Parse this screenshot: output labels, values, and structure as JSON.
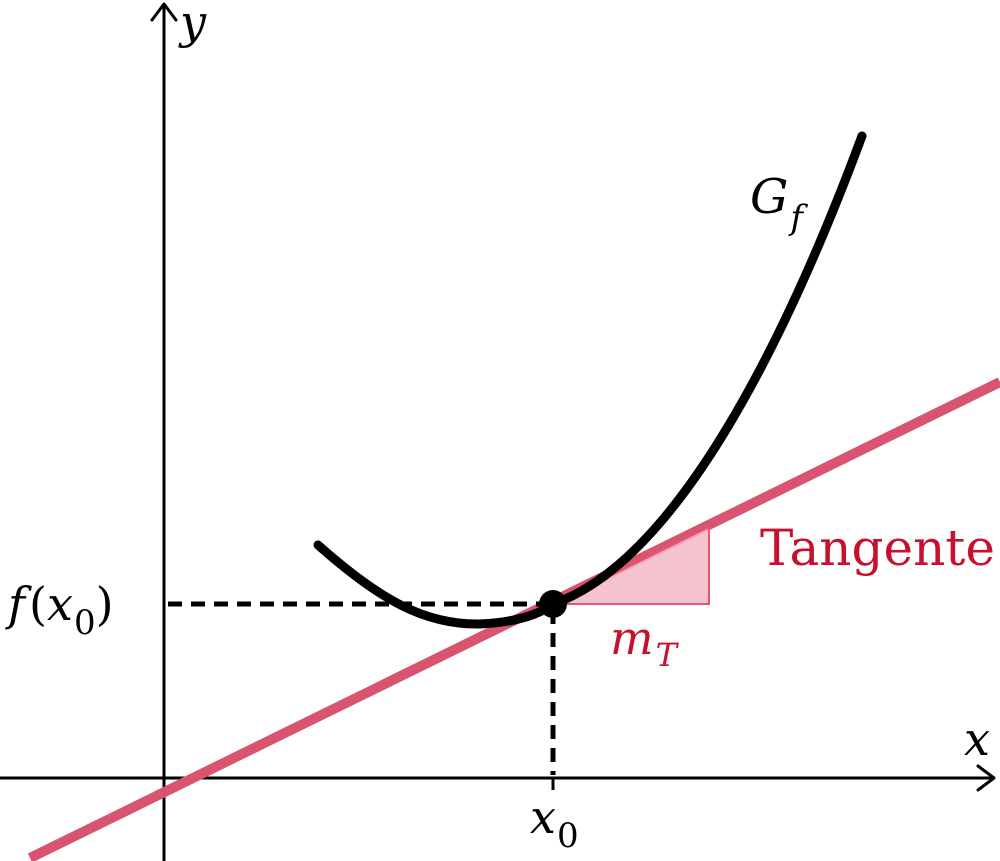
{
  "diagram": {
    "axes": {
      "x_label": "x",
      "y_label": "y"
    },
    "curve_label_main": "G",
    "curve_label_sub": "f",
    "tangent_label": "Tangente",
    "slope_label_main": "m",
    "slope_label_sub": "T",
    "x0_label_main": "x",
    "x0_label_sub": "0",
    "fx0_label_f": "f",
    "fx0_label_open": "(",
    "fx0_label_main": "x",
    "fx0_label_sub": "0",
    "fx0_label_close": ")",
    "colors": {
      "curve": "#000000",
      "tangent": "#d9546e",
      "slope_triangle": "#f3b8c4",
      "label_red": "#c8102e"
    }
  }
}
